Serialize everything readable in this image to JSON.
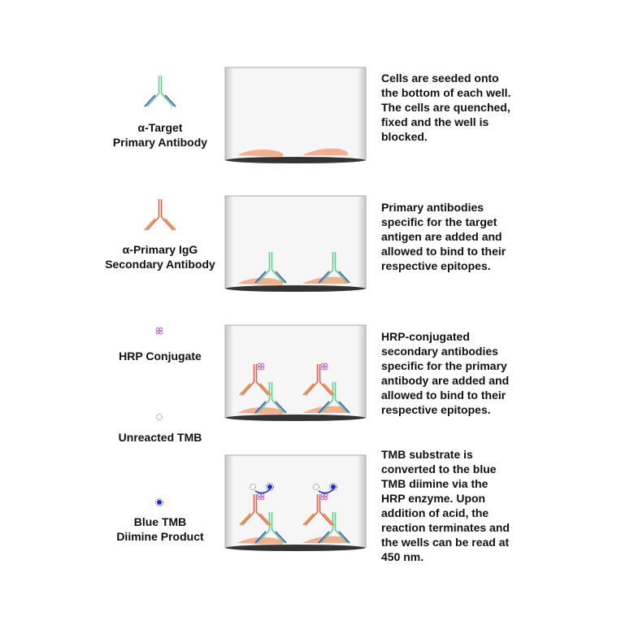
{
  "legend": [
    {
      "icon": "primary-antibody-icon",
      "lines": [
        "α-Target",
        "Primary Antibody"
      ]
    },
    {
      "icon": "secondary-antibody-icon",
      "lines": [
        "α-Primary IgG",
        "Secondary Antibody"
      ]
    },
    {
      "icon": "hrp-conjugate-icon",
      "lines": [
        "HRP Conjugate"
      ]
    },
    {
      "icon": "unreacted-tmb-icon",
      "lines": [
        "Unreacted TMB"
      ]
    },
    {
      "icon": "blue-tmb-icon",
      "lines": [
        "Blue TMB",
        "Diimine Product"
      ]
    }
  ],
  "steps": [
    {
      "lines": [
        "Cells are seeded onto",
        "the bottom of each well.",
        "The cells are quenched,",
        "fixed and the well is",
        "blocked."
      ]
    },
    {
      "lines": [
        "Primary antibodies",
        "specific for the target",
        "antigen are added and",
        "allowed to bind to their",
        "respective epitopes."
      ]
    },
    {
      "lines": [
        "HRP-conjugated",
        "secondary antibodies",
        "specific for the primary",
        "antibody are added and",
        "allowed to bind to their",
        "respective epitopes."
      ]
    },
    {
      "lines": [
        "TMB substrate is",
        "converted to the blue",
        "TMB diimine via the",
        "HRP enzyme. Upon",
        "addition of acid, the",
        "reaction terminates and",
        "the wells can be read at",
        "450 nm."
      ]
    }
  ],
  "colors": {
    "primary_stem": "#5fcf8a",
    "primary_arms": "#4a5cc0",
    "secondary_stem": "#e0604a",
    "secondary_arms": "#e08a3a",
    "hrp": "#c060d0",
    "blue_tmb": "#1a2ad0",
    "cells": "#f2b08e",
    "well_base": "#333333"
  }
}
